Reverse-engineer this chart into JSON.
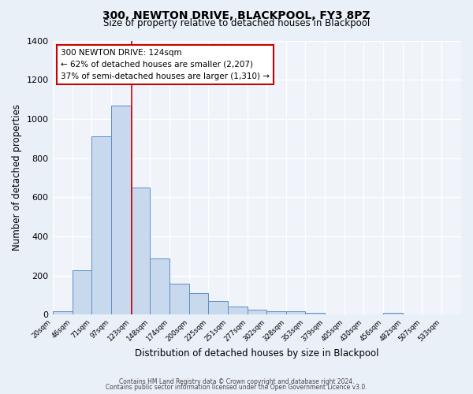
{
  "title": "300, NEWTON DRIVE, BLACKPOOL, FY3 8PZ",
  "subtitle": "Size of property relative to detached houses in Blackpool",
  "xlabel": "Distribution of detached houses by size in Blackpool",
  "ylabel": "Number of detached properties",
  "footnote1": "Contains HM Land Registry data © Crown copyright and database right 2024.",
  "footnote2": "Contains public sector information licensed under the Open Government Licence v3.0.",
  "bar_left_edges": [
    20,
    46,
    71,
    97,
    123,
    148,
    174,
    200,
    225,
    251,
    277,
    302,
    328,
    353,
    379,
    405,
    430,
    456,
    482,
    507
  ],
  "bar_widths": [
    26,
    25,
    26,
    26,
    25,
    26,
    26,
    25,
    26,
    26,
    25,
    26,
    25,
    26,
    26,
    25,
    26,
    26,
    25,
    26
  ],
  "bar_heights": [
    15,
    228,
    910,
    1068,
    650,
    288,
    157,
    108,
    70,
    40,
    25,
    15,
    15,
    10,
    0,
    0,
    0,
    10,
    0,
    0
  ],
  "tick_labels": [
    "20sqm",
    "46sqm",
    "71sqm",
    "97sqm",
    "123sqm",
    "148sqm",
    "174sqm",
    "200sqm",
    "225sqm",
    "251sqm",
    "277sqm",
    "302sqm",
    "328sqm",
    "353sqm",
    "379sqm",
    "405sqm",
    "430sqm",
    "456sqm",
    "482sqm",
    "507sqm",
    "533sqm"
  ],
  "bar_color": "#c9d9ed",
  "bar_edge_color": "#5b8dc8",
  "background_color": "#eaf0f8",
  "plot_background": "#f0f4fa",
  "grid_color": "#ffffff",
  "red_line_x": 124,
  "annotation_line1": "300 NEWTON DRIVE: 124sqm",
  "annotation_line2": "← 62% of detached houses are smaller (2,207)",
  "annotation_line3": "37% of semi-detached houses are larger (1,310) →",
  "annotation_box_color": "#ffffff",
  "annotation_box_border": "#cc0000",
  "ylim": [
    0,
    1400
  ],
  "yticks": [
    0,
    200,
    400,
    600,
    800,
    1000,
    1200,
    1400
  ]
}
